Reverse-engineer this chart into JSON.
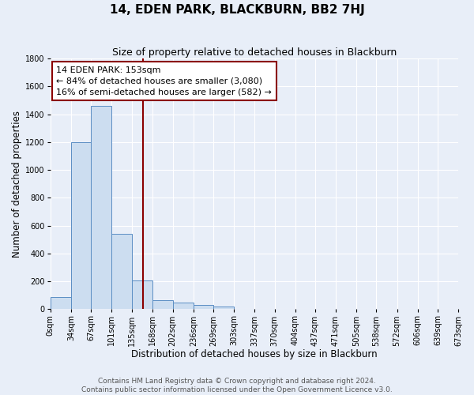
{
  "title": "14, EDEN PARK, BLACKBURN, BB2 7HJ",
  "subtitle": "Size of property relative to detached houses in Blackburn",
  "xlabel": "Distribution of detached houses by size in Blackburn",
  "ylabel": "Number of detached properties",
  "bar_edges": [
    0,
    34,
    67,
    101,
    135,
    168,
    202,
    236,
    269,
    303,
    337,
    370,
    404,
    437,
    471,
    505,
    538,
    572,
    606,
    639,
    673
  ],
  "bar_heights": [
    90,
    1200,
    1460,
    540,
    205,
    65,
    45,
    30,
    20,
    0,
    0,
    0,
    0,
    0,
    0,
    0,
    0,
    0,
    0,
    0
  ],
  "bar_color": "#ccddf0",
  "bar_edgecolor": "#5b8ec4",
  "property_value": 153,
  "vline_color": "#8b0000",
  "annotation_box_edgecolor": "#8b0000",
  "annotation_title": "14 EDEN PARK: 153sqm",
  "annotation_line1": "← 84% of detached houses are smaller (3,080)",
  "annotation_line2": "16% of semi-detached houses are larger (582) →",
  "ylim": [
    0,
    1800
  ],
  "yticks": [
    0,
    200,
    400,
    600,
    800,
    1000,
    1200,
    1400,
    1600,
    1800
  ],
  "xtick_labels": [
    "0sqm",
    "34sqm",
    "67sqm",
    "101sqm",
    "135sqm",
    "168sqm",
    "202sqm",
    "236sqm",
    "269sqm",
    "303sqm",
    "337sqm",
    "370sqm",
    "404sqm",
    "437sqm",
    "471sqm",
    "505sqm",
    "538sqm",
    "572sqm",
    "606sqm",
    "639sqm",
    "673sqm"
  ],
  "footer_line1": "Contains HM Land Registry data © Crown copyright and database right 2024.",
  "footer_line2": "Contains public sector information licensed under the Open Government Licence v3.0.",
  "background_color": "#e8eef8",
  "plot_background_color": "#e8eef8",
  "grid_color": "#ffffff",
  "title_fontsize": 11,
  "subtitle_fontsize": 9,
  "axis_label_fontsize": 8.5,
  "tick_fontsize": 7,
  "footer_fontsize": 6.5,
  "annotation_fontsize": 8,
  "annotation_title_fontsize": 8.5
}
